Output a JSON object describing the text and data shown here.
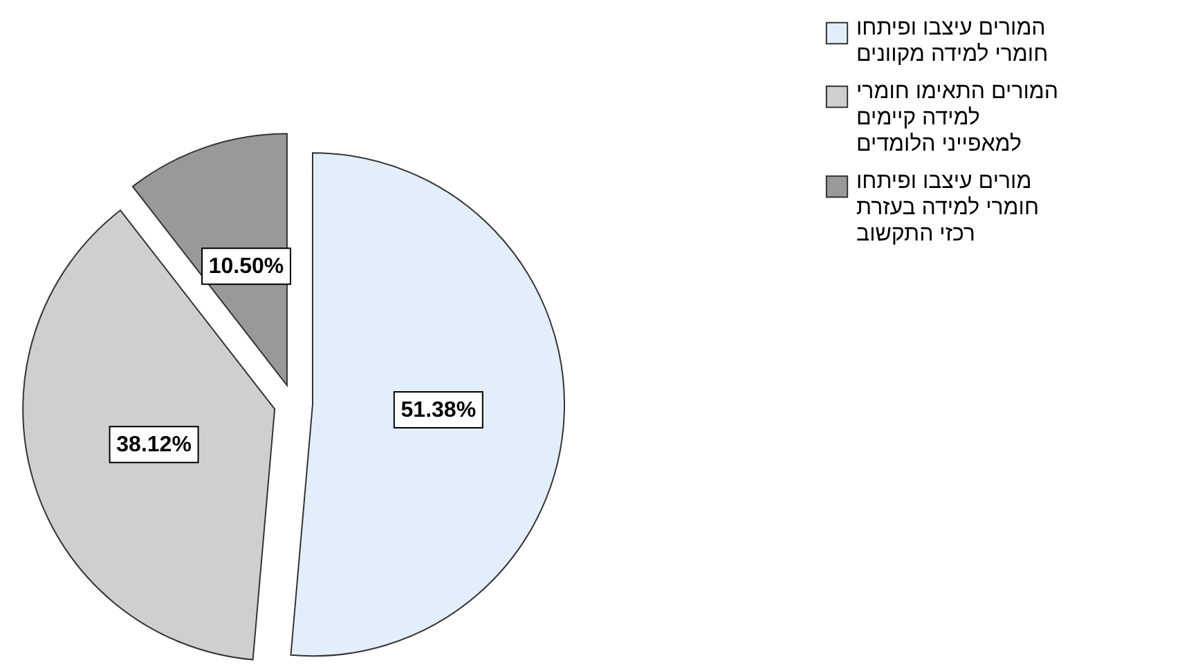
{
  "chart_data": {
    "type": "pie",
    "categories": [
      "המורים עיצבו ופיתחו חומרי למידה מקוונים",
      "המורים התאימו חומרי למידה קיימים למאפייני הלומדים",
      "מורים עיצבו ופיתחו חומרי למידה בעזרת רכזי התקשוב"
    ],
    "values": [
      51.38,
      38.12,
      10.5
    ],
    "value_labels": [
      "51.38%",
      "38.12%",
      "10.50%"
    ],
    "colors": [
      "#e3eefb",
      "#cfcfcf",
      "#999999"
    ],
    "legend": "top right"
  }
}
